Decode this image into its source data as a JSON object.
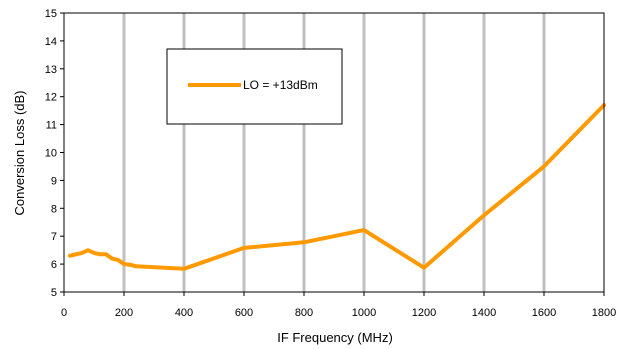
{
  "chart_data": {
    "type": "line",
    "title": "",
    "xlabel": "IF Frequency (MHz)",
    "ylabel": "Conversion Loss (dB)",
    "xlim": [
      0,
      1800
    ],
    "ylim": [
      5,
      15
    ],
    "xticks": [
      0,
      200,
      400,
      600,
      800,
      1000,
      1200,
      1400,
      1600,
      1800
    ],
    "yticks": [
      5,
      6,
      7,
      8,
      9,
      10,
      11,
      12,
      13,
      14,
      15
    ],
    "grid": "vertical",
    "legend_position": "upper-left-inside",
    "series": [
      {
        "name": "LO = +13dBm",
        "color": "#ff9900",
        "x": [
          20,
          40,
          60,
          80,
          100,
          120,
          140,
          160,
          180,
          200,
          220,
          240,
          400,
          600,
          800,
          1000,
          1200,
          1400,
          1600,
          1800
        ],
        "y": [
          6.3,
          6.35,
          6.4,
          6.5,
          6.4,
          6.35,
          6.35,
          6.2,
          6.15,
          6.0,
          5.98,
          5.92,
          5.83,
          6.58,
          6.78,
          7.22,
          5.87,
          7.75,
          9.5,
          11.7
        ]
      }
    ]
  }
}
